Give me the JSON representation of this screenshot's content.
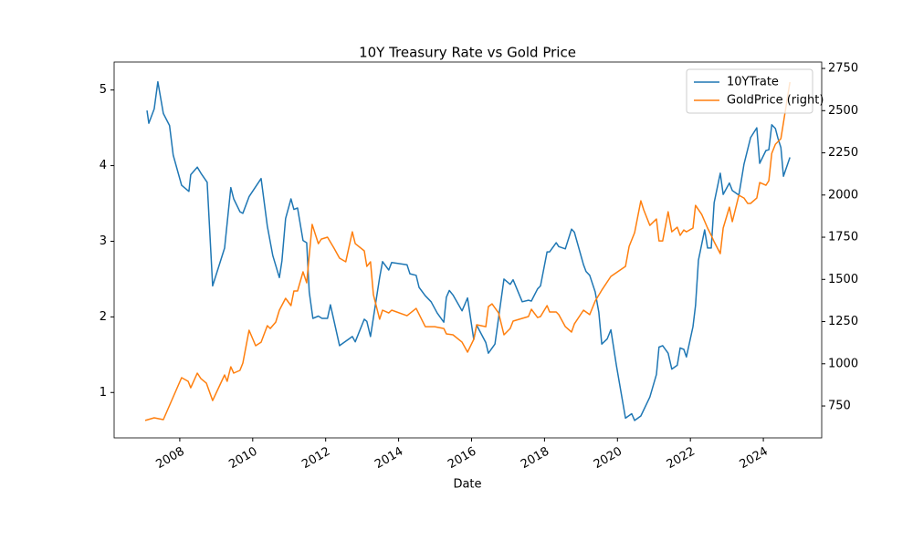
{
  "chart_data": {
    "type": "line",
    "title": "10Y Treasury Rate vs Gold Price",
    "xlabel": "Date",
    "xlim": [
      2006.2,
      2025.6
    ],
    "xticks": [
      2008,
      2010,
      2012,
      2014,
      2016,
      2018,
      2020,
      2022,
      2024
    ],
    "ylim": [
      0.4,
      5.37
    ],
    "yticks": [
      1,
      2,
      3,
      4,
      5
    ],
    "y2lim": [
      561,
      2788
    ],
    "y2ticks": [
      750,
      1000,
      1250,
      1500,
      1750,
      2000,
      2250,
      2500,
      2750
    ],
    "legend": "upper right",
    "grid": false,
    "series": [
      {
        "name": "10YTrate",
        "color": "#1f77b4",
        "x": [
          2007.1,
          2007.15,
          2007.3,
          2007.4,
          2007.55,
          2007.72,
          2007.82,
          2008.05,
          2008.25,
          2008.3,
          2008.48,
          2008.58,
          2008.75,
          2008.9,
          2009.23,
          2009.4,
          2009.48,
          2009.65,
          2009.73,
          2009.9,
          2010.23,
          2010.4,
          2010.55,
          2010.73,
          2010.8,
          2010.9,
          2011.05,
          2011.13,
          2011.23,
          2011.38,
          2011.48,
          2011.55,
          2011.65,
          2011.8,
          2011.9,
          2012.05,
          2012.13,
          2012.38,
          2012.73,
          2012.81,
          2013.06,
          2013.13,
          2013.23,
          2013.48,
          2013.56,
          2013.73,
          2013.81,
          2014.23,
          2014.31,
          2014.48,
          2014.56,
          2014.73,
          2014.89,
          2015.06,
          2015.24,
          2015.31,
          2015.39,
          2015.49,
          2015.74,
          2015.89,
          2016.06,
          2016.14,
          2016.39,
          2016.46,
          2016.64,
          2016.89,
          2017.06,
          2017.14,
          2017.39,
          2017.56,
          2017.64,
          2017.81,
          2017.89,
          2018.07,
          2018.14,
          2018.32,
          2018.39,
          2018.57,
          2018.74,
          2018.82,
          2019.07,
          2019.14,
          2019.24,
          2019.39,
          2019.49,
          2019.57,
          2019.72,
          2019.82,
          2019.97,
          2020.22,
          2020.39,
          2020.47,
          2020.64,
          2020.89,
          2021.07,
          2021.14,
          2021.24,
          2021.39,
          2021.49,
          2021.64,
          2021.72,
          2021.82,
          2021.89,
          2022.07,
          2022.14,
          2022.22,
          2022.39,
          2022.47,
          2022.57,
          2022.65,
          2022.82,
          2022.9,
          2023.07,
          2023.15,
          2023.33,
          2023.47,
          2023.65,
          2023.82,
          2023.9,
          2024.07,
          2024.15,
          2024.23,
          2024.33,
          2024.4,
          2024.48,
          2024.55,
          2024.73
        ],
        "values": [
          4.73,
          4.56,
          4.75,
          5.11,
          4.69,
          4.53,
          4.14,
          3.74,
          3.66,
          3.88,
          3.98,
          3.9,
          3.78,
          2.41,
          2.91,
          3.71,
          3.56,
          3.39,
          3.37,
          3.59,
          3.83,
          3.2,
          2.81,
          2.52,
          2.74,
          3.3,
          3.56,
          3.42,
          3.44,
          3.01,
          2.98,
          2.33,
          1.98,
          2.01,
          1.98,
          1.98,
          2.16,
          1.62,
          1.74,
          1.67,
          1.97,
          1.94,
          1.74,
          2.52,
          2.73,
          2.62,
          2.72,
          2.69,
          2.57,
          2.55,
          2.39,
          2.28,
          2.2,
          2.05,
          1.93,
          2.26,
          2.35,
          2.29,
          2.08,
          2.25,
          1.7,
          1.89,
          1.66,
          1.52,
          1.64,
          2.5,
          2.43,
          2.49,
          2.2,
          2.22,
          2.21,
          2.37,
          2.41,
          2.86,
          2.86,
          2.98,
          2.93,
          2.9,
          3.16,
          3.12,
          2.69,
          2.6,
          2.55,
          2.33,
          2.06,
          1.64,
          1.71,
          1.83,
          1.36,
          0.66,
          0.72,
          0.63,
          0.69,
          0.94,
          1.24,
          1.6,
          1.62,
          1.52,
          1.31,
          1.36,
          1.59,
          1.57,
          1.47,
          1.87,
          2.15,
          2.75,
          3.15,
          2.91,
          2.91,
          3.51,
          3.9,
          3.62,
          3.77,
          3.67,
          3.61,
          4.02,
          4.37,
          4.5,
          4.03,
          4.2,
          4.21,
          4.54,
          4.49,
          4.36,
          4.24,
          3.86,
          4.11
        ]
      },
      {
        "name": "GoldPrice (right)",
        "color": "#ff7f0e",
        "axis": "y2",
        "x": [
          2007.05,
          2007.3,
          2007.55,
          2008.05,
          2008.23,
          2008.3,
          2008.48,
          2008.58,
          2008.73,
          2008.9,
          2009.23,
          2009.3,
          2009.4,
          2009.48,
          2009.65,
          2009.73,
          2009.9,
          2010.08,
          2010.23,
          2010.4,
          2010.48,
          2010.63,
          2010.73,
          2010.9,
          2011.05,
          2011.13,
          2011.23,
          2011.38,
          2011.48,
          2011.63,
          2011.8,
          2011.88,
          2012.05,
          2012.23,
          2012.38,
          2012.55,
          2012.73,
          2012.81,
          2013.06,
          2013.13,
          2013.23,
          2013.31,
          2013.48,
          2013.56,
          2013.73,
          2013.81,
          2014.23,
          2014.48,
          2014.73,
          2014.99,
          2015.24,
          2015.31,
          2015.49,
          2015.74,
          2015.89,
          2016.06,
          2016.14,
          2016.39,
          2016.46,
          2016.56,
          2016.74,
          2016.89,
          2017.06,
          2017.14,
          2017.39,
          2017.56,
          2017.64,
          2017.81,
          2017.89,
          2018.07,
          2018.14,
          2018.32,
          2018.39,
          2018.57,
          2018.74,
          2018.82,
          2019.07,
          2019.24,
          2019.39,
          2019.57,
          2019.82,
          2020.22,
          2020.32,
          2020.47,
          2020.64,
          2020.72,
          2020.89,
          2021.07,
          2021.14,
          2021.24,
          2021.39,
          2021.49,
          2021.64,
          2021.72,
          2021.82,
          2021.89,
          2022.07,
          2022.14,
          2022.31,
          2022.47,
          2022.57,
          2022.65,
          2022.82,
          2022.9,
          2023.07,
          2023.15,
          2023.33,
          2023.47,
          2023.57,
          2023.65,
          2023.82,
          2023.9,
          2024.07,
          2024.15,
          2024.23,
          2024.33,
          2024.48,
          2024.73
        ],
        "values": [
          664,
          680,
          669,
          918,
          896,
          858,
          945,
          912,
          885,
          782,
          934,
          896,
          982,
          945,
          961,
          1004,
          1199,
          1107,
          1128,
          1226,
          1209,
          1247,
          1318,
          1388,
          1345,
          1431,
          1431,
          1545,
          1480,
          1826,
          1712,
          1739,
          1750,
          1685,
          1626,
          1604,
          1782,
          1712,
          1669,
          1577,
          1604,
          1409,
          1264,
          1318,
          1301,
          1318,
          1285,
          1328,
          1220,
          1220,
          1209,
          1177,
          1172,
          1128,
          1069,
          1145,
          1231,
          1220,
          1339,
          1355,
          1301,
          1172,
          1209,
          1253,
          1269,
          1280,
          1323,
          1274,
          1280,
          1345,
          1307,
          1307,
          1291,
          1220,
          1188,
          1236,
          1318,
          1291,
          1372,
          1436,
          1518,
          1577,
          1696,
          1777,
          1966,
          1912,
          1820,
          1858,
          1728,
          1728,
          1901,
          1782,
          1809,
          1761,
          1793,
          1782,
          1804,
          1939,
          1885,
          1804,
          1761,
          1723,
          1653,
          1804,
          1928,
          1842,
          1999,
          1982,
          1950,
          1950,
          1982,
          2074,
          2058,
          2085,
          2247,
          2301,
          2334,
          2669
        ]
      }
    ]
  }
}
